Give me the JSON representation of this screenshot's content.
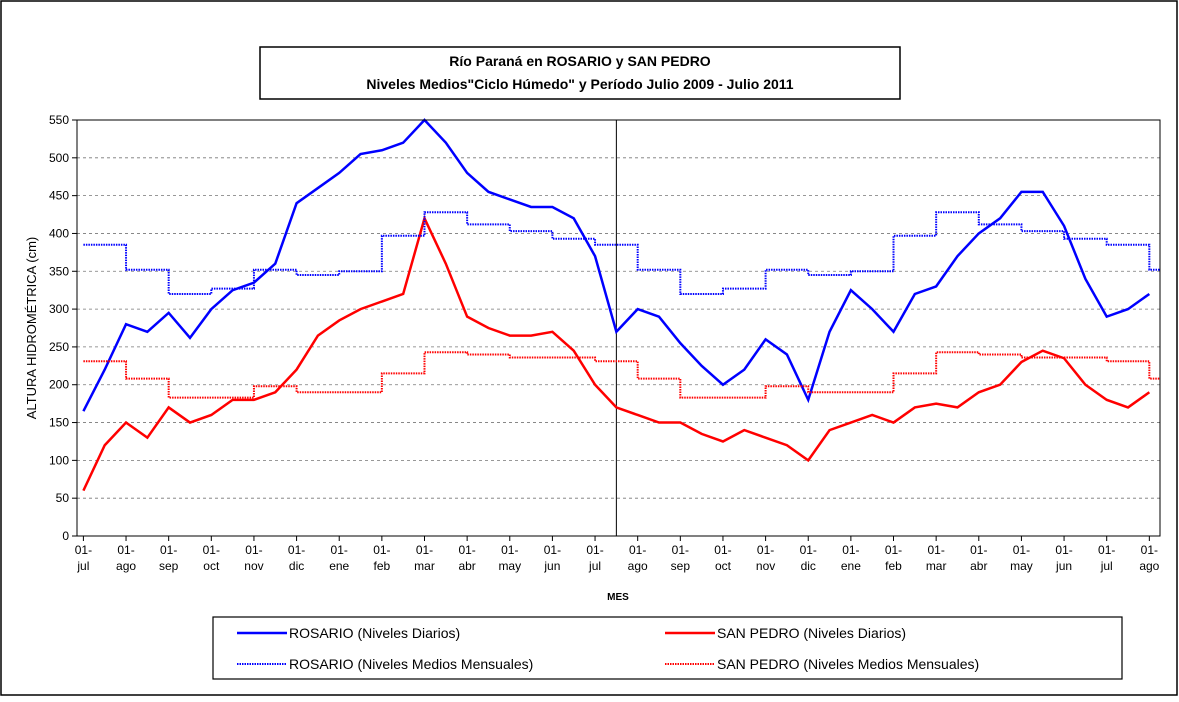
{
  "chart_data": {
    "type": "line",
    "title": [
      "Río Paraná en ROSARIO y SAN PEDRO",
      "Niveles Medios\"Ciclo Húmedo\" y Período Julio 2009 - Julio 2011"
    ],
    "y_label": "ALTURA HIDROMÉTRICA (cm)",
    "x_label": "MES",
    "xlim": [
      -0.15,
      25.25
    ],
    "ylim": [
      0,
      550
    ],
    "yticks": [
      0,
      50,
      100,
      150,
      200,
      250,
      300,
      350,
      400,
      450,
      500,
      550
    ],
    "xticks": [
      {
        "value": 0,
        "label": "01-jul"
      },
      {
        "value": 1,
        "label": "01-ago"
      },
      {
        "value": 2,
        "label": "01-sep"
      },
      {
        "value": 3,
        "label": "01-oct"
      },
      {
        "value": 4,
        "label": "01-nov"
      },
      {
        "value": 5,
        "label": "01-dic"
      },
      {
        "value": 6,
        "label": "01-ene"
      },
      {
        "value": 7,
        "label": "01-feb"
      },
      {
        "value": 8,
        "label": "01-mar"
      },
      {
        "value": 9,
        "label": "01-abr"
      },
      {
        "value": 10,
        "label": "01-may"
      },
      {
        "value": 11,
        "label": "01-jun"
      },
      {
        "value": 12,
        "label": "01-jul"
      },
      {
        "value": 13,
        "label": "01-ago"
      },
      {
        "value": 14,
        "label": "01-sep"
      },
      {
        "value": 15,
        "label": "01-oct"
      },
      {
        "value": 16,
        "label": "01-nov"
      },
      {
        "value": 17,
        "label": "01-dic"
      },
      {
        "value": 18,
        "label": "01-ene"
      },
      {
        "value": 19,
        "label": "01-feb"
      },
      {
        "value": 20,
        "label": "01-mar"
      },
      {
        "value": 21,
        "label": "01-abr"
      },
      {
        "value": 22,
        "label": "01-may"
      },
      {
        "value": 23,
        "label": "01-jun"
      },
      {
        "value": 24,
        "label": "01-jul"
      },
      {
        "value": 25,
        "label": "01-ago"
      }
    ],
    "grid": true,
    "vlines": [
      12.5
    ],
    "series": [
      {
        "name": "ROSARIO (Niveles Diarios)",
        "color": "#0000ff",
        "style": "solid",
        "x": [
          0,
          0.5,
          1,
          1.5,
          2,
          2.5,
          3,
          3.5,
          4,
          4.5,
          5,
          5.5,
          6,
          6.5,
          7,
          7.5,
          8,
          8.5,
          9,
          9.5,
          10,
          10.5,
          11,
          11.5,
          12,
          12.5,
          13,
          13.5,
          14,
          14.5,
          15,
          15.5,
          16,
          16.5,
          17,
          17.5,
          18,
          18.5,
          19,
          19.5,
          20,
          20.5,
          21,
          21.5,
          22,
          22.5,
          23,
          23.5,
          24,
          24.5,
          25
        ],
        "values": [
          165,
          220,
          280,
          270,
          295,
          262,
          300,
          325,
          335,
          360,
          440,
          460,
          480,
          505,
          510,
          520,
          550,
          520,
          480,
          455,
          445,
          435,
          435,
          420,
          370,
          270,
          300,
          290,
          255,
          225,
          200,
          220,
          260,
          240,
          180,
          270,
          325,
          300,
          270,
          320,
          330,
          370,
          400,
          420,
          455,
          455,
          410,
          340,
          290,
          300,
          320
        ]
      },
      {
        "name": "SAN PEDRO (Niveles Diarios)",
        "color": "#ff0000",
        "style": "solid",
        "x": [
          0,
          0.5,
          1,
          1.5,
          2,
          2.5,
          3,
          3.5,
          4,
          4.5,
          5,
          5.5,
          6,
          6.5,
          7,
          7.5,
          8,
          8.5,
          9,
          9.5,
          10,
          10.5,
          11,
          11.5,
          12,
          12.5,
          13,
          13.5,
          14,
          14.5,
          15,
          15.5,
          16,
          16.5,
          17,
          17.5,
          18,
          18.5,
          19,
          19.5,
          20,
          20.5,
          21,
          21.5,
          22,
          22.5,
          23,
          23.5,
          24,
          24.5,
          25
        ],
        "values": [
          60,
          120,
          150,
          130,
          170,
          150,
          160,
          180,
          180,
          190,
          220,
          265,
          285,
          300,
          310,
          320,
          420,
          360,
          290,
          275,
          265,
          265,
          270,
          245,
          200,
          170,
          160,
          150,
          150,
          135,
          125,
          140,
          130,
          120,
          100,
          140,
          150,
          160,
          150,
          170,
          175,
          170,
          190,
          200,
          230,
          245,
          235,
          200,
          180,
          170,
          190
        ]
      },
      {
        "name": "ROSARIO (Niveles Medios Mensuales)",
        "color": "#0000ff",
        "style": "step",
        "x": [
          0,
          1,
          2,
          3,
          4,
          5,
          6,
          7,
          8,
          9,
          10,
          11,
          12,
          13,
          14,
          15,
          16,
          17,
          18,
          19,
          20,
          21,
          22,
          23,
          24,
          25
        ],
        "values": [
          385,
          352,
          320,
          327,
          352,
          345,
          350,
          397,
          428,
          412,
          403,
          393,
          385,
          352,
          320,
          327,
          352,
          345,
          350,
          397,
          428,
          412,
          403,
          393,
          385,
          352
        ]
      },
      {
        "name": "SAN PEDRO (Niveles Medios Mensuales)",
        "color": "#ff0000",
        "style": "step",
        "x": [
          0,
          1,
          2,
          3,
          4,
          5,
          6,
          7,
          8,
          9,
          10,
          11,
          12,
          13,
          14,
          15,
          16,
          17,
          18,
          19,
          20,
          21,
          22,
          23,
          24,
          25
        ],
        "values": [
          231,
          208,
          183,
          183,
          198,
          190,
          190,
          215,
          243,
          240,
          236,
          236,
          231,
          208,
          183,
          183,
          198,
          190,
          190,
          215,
          243,
          240,
          236,
          236,
          231,
          208
        ]
      }
    ]
  }
}
